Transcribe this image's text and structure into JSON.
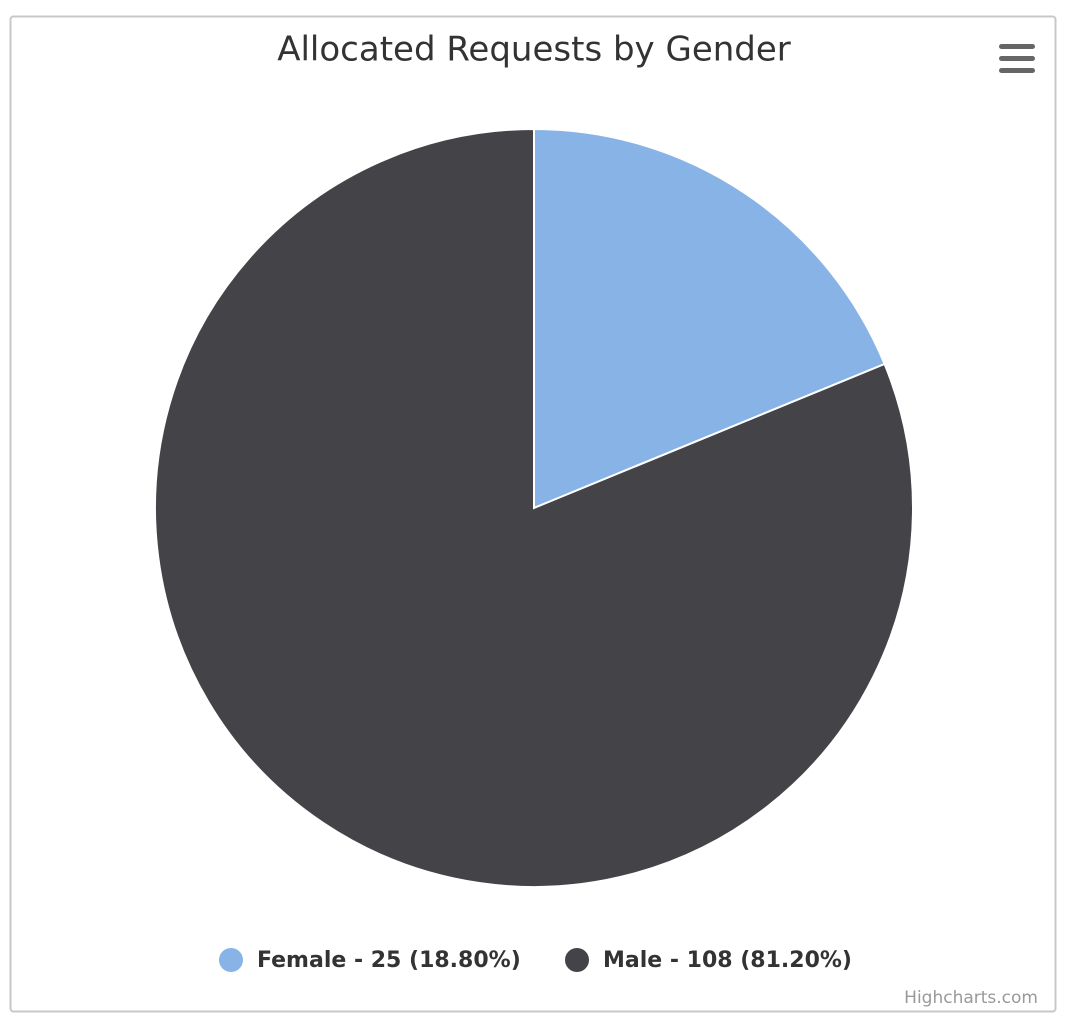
{
  "chart_data": {
    "type": "pie",
    "title": "Allocated Requests by Gender",
    "categories": [
      "Female - 25 (18.80%)",
      "Male - 108 (81.20%)"
    ],
    "values": [
      25,
      108
    ],
    "colors": [
      "#88b3e6",
      "#434348"
    ],
    "credits": "Highcharts.com"
  }
}
